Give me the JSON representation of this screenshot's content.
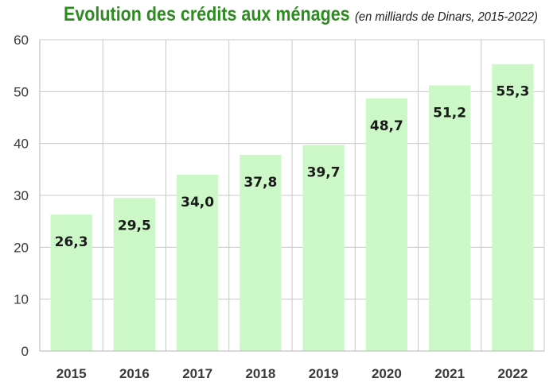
{
  "chart_data": {
    "type": "bar",
    "title": "Evolution des crédits aux ménages",
    "subtitle": "(en milliards de Dinars, 2015-2022)",
    "categories": [
      "2015",
      "2016",
      "2017",
      "2018",
      "2019",
      "2020",
      "2021",
      "2022"
    ],
    "values": [
      26.3,
      29.5,
      34.0,
      37.8,
      39.7,
      48.7,
      51.2,
      55.3
    ],
    "data_labels": [
      "26,3",
      "29,5",
      "34,0",
      "37,8",
      "39,7",
      "48,7",
      "51,2",
      "55,3"
    ],
    "ylim": [
      0,
      60
    ],
    "yticks": [
      "0",
      "10",
      "20",
      "30",
      "40",
      "50",
      "60"
    ],
    "xlabel": "",
    "ylabel": "",
    "grid": true,
    "legend": "none",
    "colors": {
      "bar": "#ccf8c8",
      "title": "#2e8b22",
      "grid": "#c8c8c8",
      "text": "#3a3a3a"
    }
  }
}
